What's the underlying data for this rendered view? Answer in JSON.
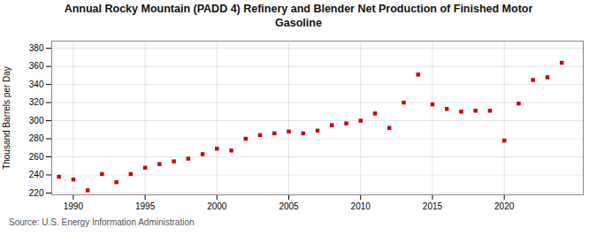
{
  "chart_data": {
    "type": "scatter",
    "title": "Annual Rocky Mountain (PADD 4) Refinery and Blender Net Production of Finished Motor\nGasoline",
    "ylabel": "Thousand Barrels per Day",
    "source": "Source: U.S. Energy Information Administration",
    "x": [
      1989,
      1990,
      1991,
      1992,
      1993,
      1994,
      1995,
      1996,
      1997,
      1998,
      1999,
      2000,
      2001,
      2002,
      2003,
      2004,
      2005,
      2006,
      2007,
      2008,
      2009,
      2010,
      2011,
      2012,
      2013,
      2014,
      2015,
      2016,
      2017,
      2018,
      2019,
      2020,
      2021,
      2022,
      2023,
      2024
    ],
    "values": [
      238,
      235,
      223,
      241,
      232,
      241,
      248,
      252,
      255,
      258,
      263,
      269,
      267,
      280,
      284,
      286,
      288,
      286,
      289,
      295,
      297,
      300,
      308,
      292,
      320,
      351,
      318,
      313,
      310,
      311,
      311,
      278,
      319,
      345,
      348,
      364
    ],
    "color": "#cc0000",
    "marker": "square",
    "xlim": [
      1988.5,
      2025.5
    ],
    "xticks": [
      1990,
      1995,
      2000,
      2005,
      2010,
      2015,
      2020
    ],
    "ylim": [
      218,
      388
    ],
    "yticks": [
      220,
      240,
      260,
      280,
      300,
      320,
      340,
      360,
      380
    ],
    "grid": true
  }
}
